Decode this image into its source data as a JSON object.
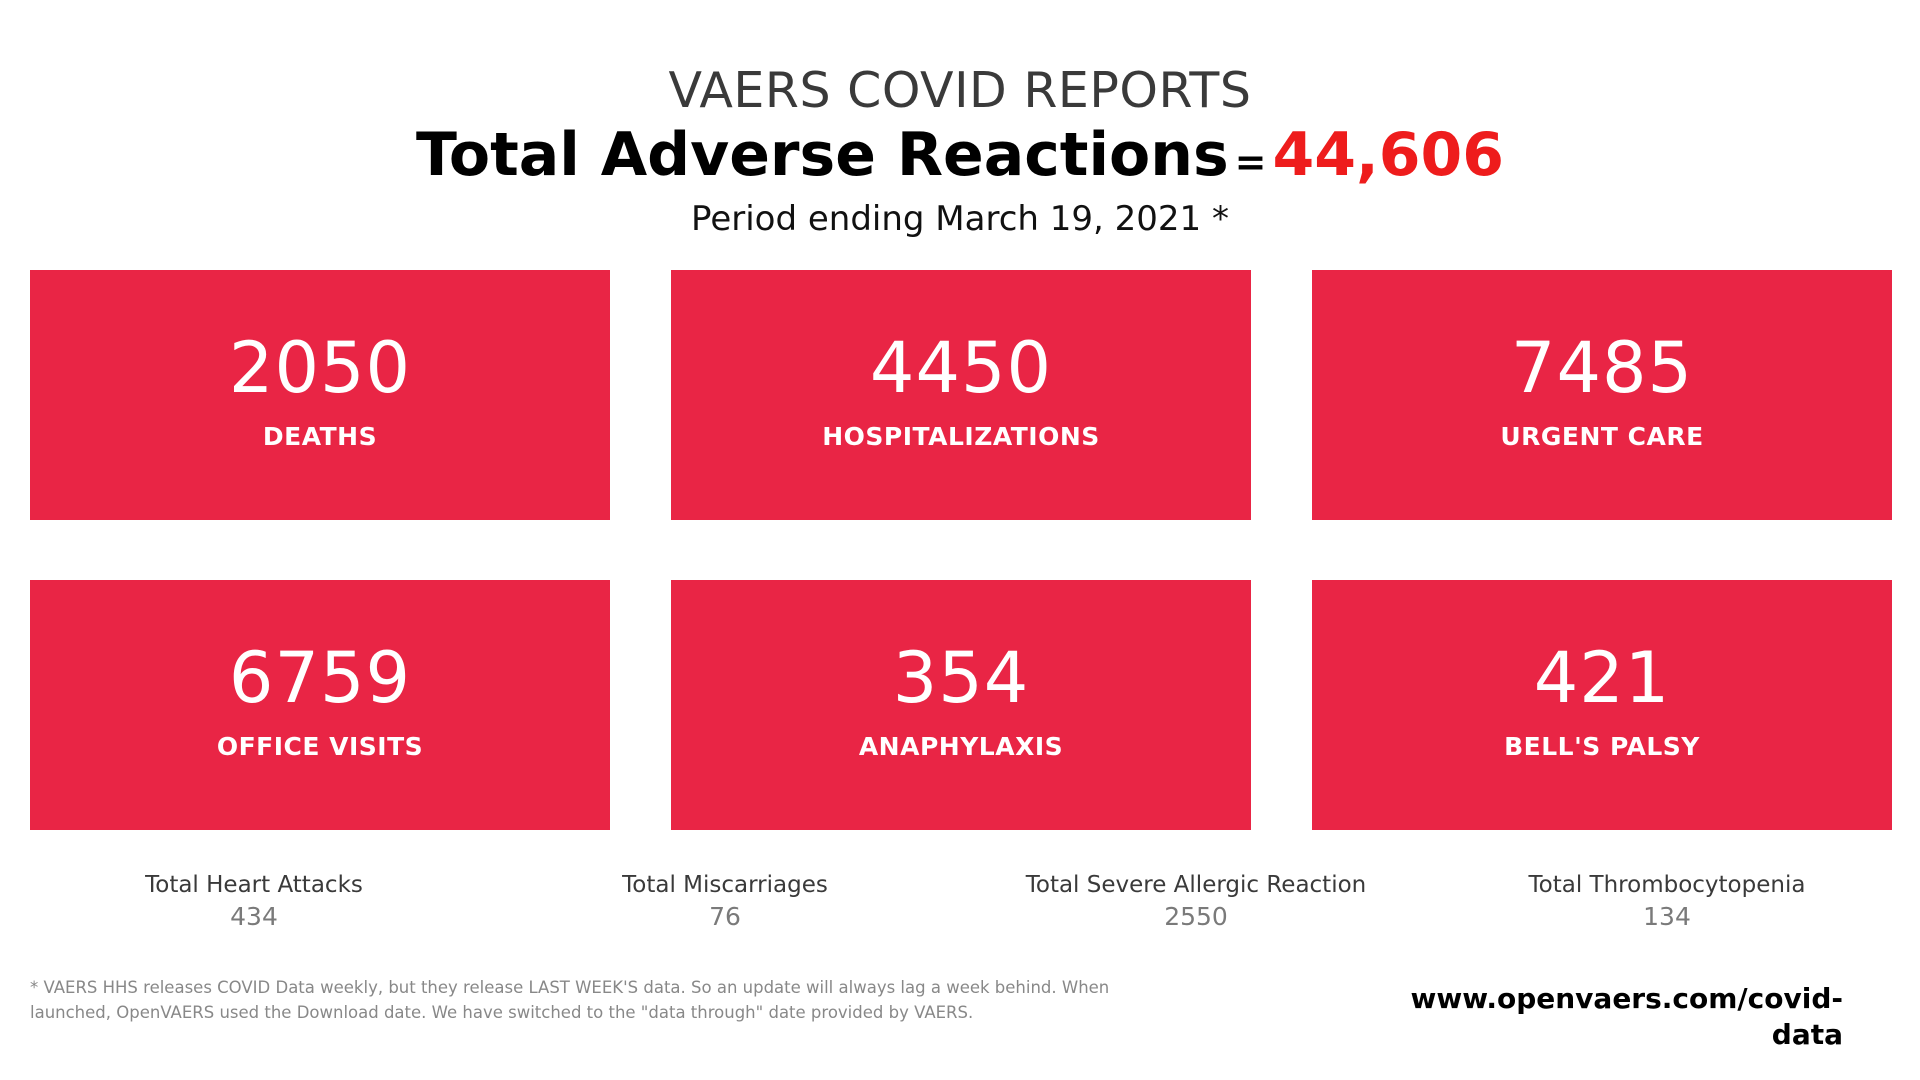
{
  "header": {
    "title": "VAERS COVID REPORTS",
    "total_label": "Total Adverse Reactions",
    "equals": "=",
    "total_value": "44,606",
    "period": "Period ending March 19, 2021 *"
  },
  "cards": [
    {
      "value": "2050",
      "label": "DEATHS"
    },
    {
      "value": "4450",
      "label": "HOSPITALIZATIONS"
    },
    {
      "value": "7485",
      "label": "URGENT CARE"
    },
    {
      "value": "6759",
      "label": "OFFICE VISITS"
    },
    {
      "value": "354",
      "label": "ANAPHYLAXIS"
    },
    {
      "value": "421",
      "label": "BELL'S PALSY"
    }
  ],
  "stats": [
    {
      "label": "Total Heart Attacks",
      "value": "434"
    },
    {
      "label": "Total Miscarriages",
      "value": "76"
    },
    {
      "label": "Total Severe Allergic Reaction",
      "value": "2550"
    },
    {
      "label": "Total Thrombocytopenia",
      "value": "134"
    }
  ],
  "footnote": "* VAERS HHS releases COVID Data weekly, but they release LAST WEEK'S data. So an update will always lag a week behind. When launched, OpenVAERS used the Download date. We have switched to the \"data through\" date provided by VAERS.",
  "site_url": "www.openvaers.com/covid-data",
  "colors": {
    "card_background": "#e92545",
    "total_value": "#ee1c1c",
    "page_background": "#ffffff"
  }
}
